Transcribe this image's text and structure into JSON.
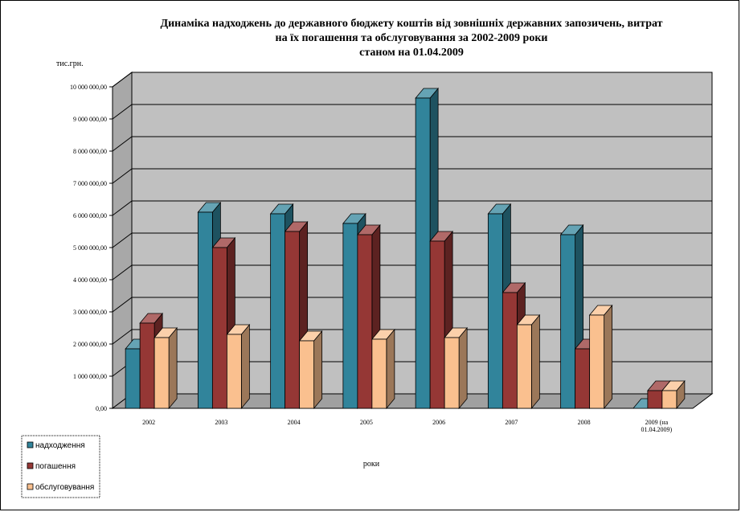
{
  "chart_data": {
    "type": "bar",
    "title_lines": [
      "Динаміка надходжень до державного бюджету коштів від зовнішніх державних запозичень, витрат",
      "на їх погашення та обслуговування за 2002-2009 роки",
      "станом на 01.04.2009"
    ],
    "ylabel": "тис.грн.",
    "xlabel": "роки",
    "categories": [
      [
        "2002"
      ],
      [
        "2003"
      ],
      [
        "2004"
      ],
      [
        "2005"
      ],
      [
        "2006"
      ],
      [
        "2007"
      ],
      [
        "2008"
      ],
      [
        "2009 (на",
        "01.04.2009)"
      ]
    ],
    "yticks": [
      "0,00",
      "1 000 000,00",
      "2 000 000,00",
      "3 000 000,00",
      "4 000 000,00",
      "5 000 000,00",
      "6 000 000,00",
      "7 000 000,00",
      "8 000 000,00",
      "9 000 000,00",
      "10 000 000,00"
    ],
    "ylim": [
      0,
      10000000
    ],
    "legend_position": "bottom-left",
    "grid": true,
    "series": [
      {
        "name": "надходження",
        "color": "#31849b",
        "values": [
          1850000,
          6100000,
          6050000,
          5750000,
          9650000,
          6050000,
          5400000,
          0
        ]
      },
      {
        "name": "погашення",
        "color": "#953735",
        "values": [
          2650000,
          5000000,
          5500000,
          5400000,
          5200000,
          3600000,
          1850000,
          550000
        ]
      },
      {
        "name": "обслуговування",
        "color": "#fac08f",
        "values": [
          2200000,
          2300000,
          2100000,
          2150000,
          2200000,
          2600000,
          2900000,
          550000
        ]
      }
    ]
  }
}
